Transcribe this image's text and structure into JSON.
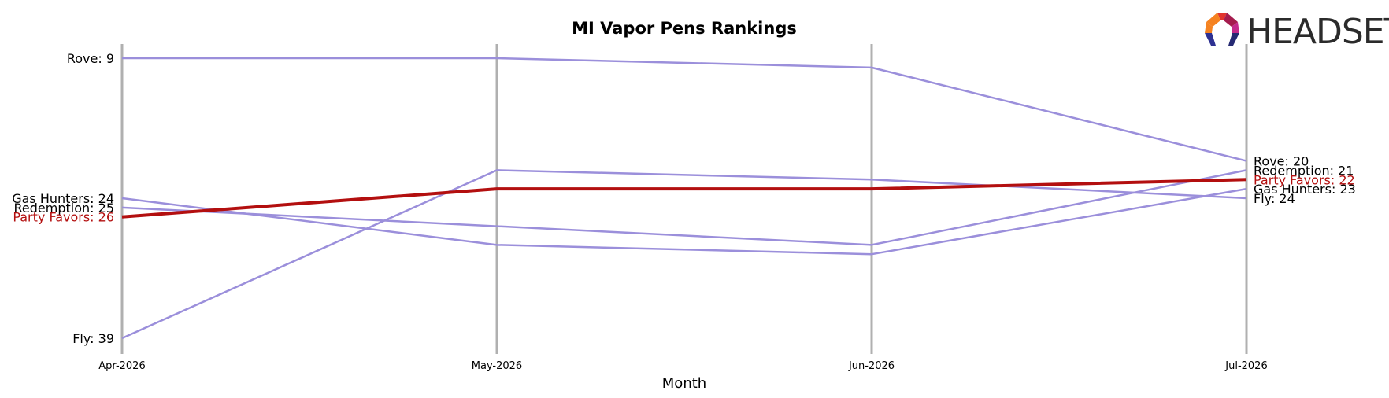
{
  "chart_data": {
    "type": "line",
    "title": "MI Vapor Pens Rankings",
    "xlabel": "Month",
    "ylabel": "",
    "x": [
      "Apr-2026",
      "May-2026",
      "Jun-2026",
      "Jul-2026"
    ],
    "y_inverted": true,
    "ylim": [
      9,
      39
    ],
    "grid": false,
    "series": [
      {
        "name": "Rove",
        "values": [
          9,
          9,
          10,
          20
        ],
        "highlight": false
      },
      {
        "name": "Gas Hunters",
        "values": [
          24,
          29,
          30,
          23
        ],
        "highlight": false
      },
      {
        "name": "Redemption",
        "values": [
          25,
          27,
          29,
          21
        ],
        "highlight": false
      },
      {
        "name": "Party Favors",
        "values": [
          26,
          23,
          23,
          22
        ],
        "highlight": true
      },
      {
        "name": "Fly",
        "values": [
          39,
          21,
          22,
          24
        ],
        "highlight": false
      }
    ],
    "colors": {
      "series": "#9b8fdb",
      "highlight": "#b30f0f",
      "axis_line": "#b0b0b0"
    }
  },
  "logo": {
    "text": "HEADSET",
    "colors": [
      "#e2352e",
      "#f58220",
      "#a51c4e",
      "#c42a8c",
      "#2e3192",
      "#262a73"
    ]
  }
}
